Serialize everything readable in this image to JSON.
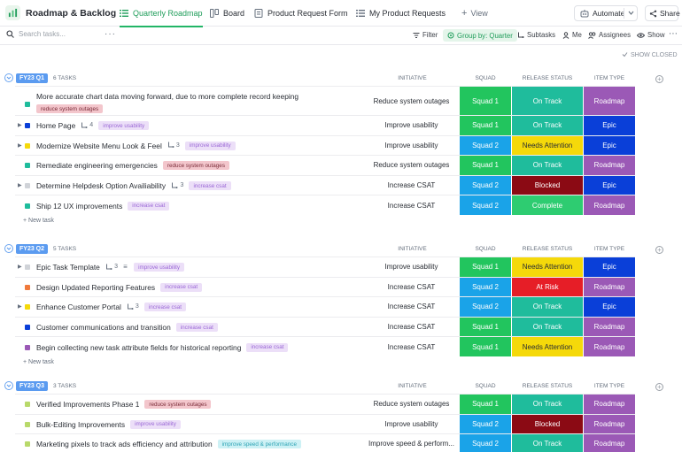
{
  "app": {
    "title": "Roadmap & Backlog"
  },
  "tabs": [
    {
      "label": "Quarterly Roadmap",
      "icon": "list-icon",
      "active": true
    },
    {
      "label": "Board",
      "icon": "board-icon",
      "active": false
    },
    {
      "label": "Product Request Form",
      "icon": "form-icon",
      "active": false
    },
    {
      "label": "My Product Requests",
      "icon": "list-icon",
      "active": false
    }
  ],
  "header": {
    "add_view": "View",
    "automate": "Automate",
    "share": "Share"
  },
  "toolbar": {
    "search_placeholder": "Search tasks...",
    "filter": "Filter",
    "group_by": "Group by: Quarter",
    "subtasks": "Subtasks",
    "me": "Me",
    "assignees": "Assignees",
    "show": "Show",
    "show_closed": "SHOW CLOSED"
  },
  "columns": {
    "initiative": "INITIATIVE",
    "squad": "SQUAD",
    "release_status": "RELEASE STATUS",
    "item_type": "ITEM TYPE"
  },
  "colors": {
    "accent": "#22b566",
    "squad1": "#22c55e",
    "squad2": "#1aa3e8",
    "on_track": "#1fbc9c",
    "needs_attention": "#f5d90a",
    "blocked": "#8b0a14",
    "complete": "#2ecc71",
    "at_risk": "#e61e27",
    "roadmap": "#9b59b6",
    "epic": "#0a3fd8"
  },
  "groups": [
    {
      "label": "FY23 Q1",
      "count": "6 TASKS",
      "new_task": "+ New task",
      "tasks": [
        {
          "title": "More accurate chart data moving forward, due to more complete record keeping",
          "tag": "reduce system outages",
          "tag_style": "pink",
          "initiative": "Reduce system outages",
          "squad": "Squad 1",
          "status": "On Track",
          "type": "Roadmap",
          "square": "#1fbc9c",
          "expand": false,
          "subtasks": "",
          "two_line": true
        },
        {
          "title": "Home Page",
          "tag": "improve usability",
          "tag_style": "purple",
          "initiative": "Improve usability",
          "squad": "Squad 1",
          "status": "On Track",
          "type": "Epic",
          "square": "#0a3fd8",
          "expand": true,
          "subtasks": "4"
        },
        {
          "title": "Modernize Website Menu Look & Feel",
          "tag": "improve usability",
          "tag_style": "purple",
          "initiative": "Improve usability",
          "squad": "Squad 2",
          "status": "Needs Attention",
          "type": "Epic",
          "square": "#f5d90a",
          "expand": true,
          "subtasks": "3"
        },
        {
          "title": "Remediate engineering emergencies",
          "tag": "reduce system outages",
          "tag_style": "pink",
          "initiative": "Reduce system outages",
          "squad": "Squad 1",
          "status": "On Track",
          "type": "Roadmap",
          "square": "#1fbc9c",
          "expand": false,
          "subtasks": ""
        },
        {
          "title": "Determine Helpdesk Option Availiability",
          "tag": "increase csat",
          "tag_style": "purple",
          "initiative": "Increase CSAT",
          "squad": "Squad 2",
          "status": "Blocked",
          "type": "Epic",
          "square": "#d0d3d8",
          "expand": true,
          "subtasks": "3"
        },
        {
          "title": "Ship 12 UX improvements",
          "tag": "increase csat",
          "tag_style": "purple",
          "initiative": "Increase CSAT",
          "squad": "Squad 2",
          "status": "Complete",
          "type": "Roadmap",
          "square": "#1fbc9c",
          "expand": false,
          "subtasks": ""
        }
      ]
    },
    {
      "label": "FY23 Q2",
      "count": "5 TASKS",
      "new_task": "+ New task",
      "tasks": [
        {
          "title": "Epic Task Template",
          "tag": "improve usability",
          "tag_style": "purple",
          "initiative": "Improve usability",
          "squad": "Squad 1",
          "status": "Needs Attention",
          "type": "Epic",
          "square": "#d0d3d8",
          "expand": true,
          "subtasks": "3",
          "desc": true
        },
        {
          "title": "Design Updated Reporting Features",
          "tag": "increase csat",
          "tag_style": "purple",
          "initiative": "Increase CSAT",
          "squad": "Squad 2",
          "status": "At Risk",
          "type": "Roadmap",
          "square": "#f07a3c",
          "expand": false,
          "subtasks": ""
        },
        {
          "title": "Enhance Customer Portal",
          "tag": "increase csat",
          "tag_style": "purple",
          "initiative": "Increase CSAT",
          "squad": "Squad 2",
          "status": "On Track",
          "type": "Epic",
          "square": "#f5d90a",
          "expand": true,
          "subtasks": "3"
        },
        {
          "title": "Customer communications and transition",
          "tag": "increase csat",
          "tag_style": "purple",
          "initiative": "Increase CSAT",
          "squad": "Squad 1",
          "status": "On Track",
          "type": "Roadmap",
          "square": "#0a3fd8",
          "expand": false,
          "subtasks": ""
        },
        {
          "title": "Begin collecting new task attribute fields for historical reporting",
          "tag": "increase csat",
          "tag_style": "purple",
          "initiative": "Increase CSAT",
          "squad": "Squad 1",
          "status": "Needs Attention",
          "type": "Roadmap",
          "square": "#9b59b6",
          "expand": false,
          "subtasks": ""
        }
      ]
    },
    {
      "label": "FY23 Q3",
      "count": "3 TASKS",
      "new_task": "",
      "tasks": [
        {
          "title": "Verified Improvements Phase 1",
          "tag": "reduce system outages",
          "tag_style": "pink",
          "initiative": "Reduce system outages",
          "squad": "Squad 1",
          "status": "On Track",
          "type": "Roadmap",
          "square": "#b8d96a",
          "expand": false,
          "subtasks": ""
        },
        {
          "title": "Bulk-Editing Improvements",
          "tag": "improve usability",
          "tag_style": "purple",
          "initiative": "Improve usability",
          "squad": "Squad 2",
          "status": "Blocked",
          "type": "Roadmap",
          "square": "#b8d96a",
          "expand": false,
          "subtasks": ""
        },
        {
          "title": "Marketing pixels to track ads efficiency and attribution",
          "tag": "improve speed & performance",
          "tag_style": "teal",
          "initiative": "Improve speed & perform...",
          "squad": "Squad 2",
          "status": "On Track",
          "type": "Roadmap",
          "square": "#b8d96a",
          "expand": false,
          "subtasks": ""
        }
      ]
    }
  ]
}
